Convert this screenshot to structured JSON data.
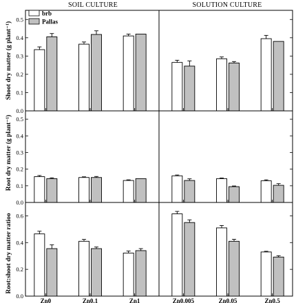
{
  "column_titles": [
    "SOIL CULTURE",
    "SOLUTION CULTURE"
  ],
  "row_labels": [
    "Shoot dry matter (g plant⁻¹)",
    "Root dry matter (g plant⁻¹)",
    "Root:shoot dry matter ratioo"
  ],
  "legend": [
    "brb",
    "Pallas"
  ],
  "colors": {
    "brb": "#ffffff",
    "Pallas": "#c0c0c0",
    "axis": "#000000"
  },
  "chart_data": [
    {
      "type": "bar",
      "title": "SOIL CULTURE",
      "ylabel": "Shoot dry matter (g plant⁻¹)",
      "categories": [
        "Zn0",
        "Zn0.1",
        "Zn1"
      ],
      "ylim": [
        0,
        0.55
      ],
      "yticks": [
        "0.0",
        "0.1",
        "0.2",
        "0.3",
        "0.4",
        "0.5"
      ],
      "series": [
        {
          "name": "brb",
          "values": [
            0.335,
            0.365,
            0.41
          ],
          "errors": [
            0.015,
            0.012,
            0.01
          ]
        },
        {
          "name": "Pallas",
          "values": [
            0.405,
            0.418,
            0.42
          ],
          "errors": [
            0.018,
            0.02,
            0.0
          ]
        }
      ]
    },
    {
      "type": "bar",
      "title": "SOLUTION CULTURE",
      "categories": [
        "Zn0.005",
        "Zn0.05",
        "Zn0.5"
      ],
      "ylim": [
        0,
        0.55
      ],
      "series": [
        {
          "name": "brb",
          "values": [
            0.265,
            0.285,
            0.395
          ],
          "errors": [
            0.012,
            0.01,
            0.018
          ]
        },
        {
          "name": "Pallas",
          "values": [
            0.245,
            0.262,
            0.38
          ],
          "errors": [
            0.028,
            0.008,
            0.0
          ]
        }
      ]
    },
    {
      "type": "bar",
      "ylabel": "Root dry matter (g plant⁻¹)",
      "categories": [
        "Zn0",
        "Zn0.1",
        "Zn1"
      ],
      "ylim": [
        0,
        0.55
      ],
      "yticks": [
        "0.0",
        "0.1",
        "0.2",
        "0.3",
        "0.4",
        "0.5"
      ],
      "series": [
        {
          "name": "brb",
          "values": [
            0.155,
            0.15,
            0.132
          ],
          "errors": [
            0.007,
            0.004,
            0.004
          ]
        },
        {
          "name": "Pallas",
          "values": [
            0.143,
            0.15,
            0.143
          ],
          "errors": [
            0.005,
            0.006,
            0.0
          ]
        }
      ]
    },
    {
      "type": "bar",
      "categories": [
        "Zn0.005",
        "Zn0.05",
        "Zn0.5"
      ],
      "ylim": [
        0,
        0.55
      ],
      "series": [
        {
          "name": "brb",
          "values": [
            0.16,
            0.143,
            0.13
          ],
          "errors": [
            0.005,
            0.004,
            0.006
          ]
        },
        {
          "name": "Pallas",
          "values": [
            0.132,
            0.095,
            0.103
          ],
          "errors": [
            0.01,
            0.004,
            0.01
          ]
        }
      ]
    },
    {
      "type": "bar",
      "ylabel": "Root:shoot dry matter ratioo",
      "categories": [
        "Zn0",
        "Zn0.1",
        "Zn1"
      ],
      "ylim": [
        0,
        0.7
      ],
      "yticks": [
        "0.0",
        "0.2",
        "0.4",
        "0.6"
      ],
      "series": [
        {
          "name": "brb",
          "values": [
            0.465,
            0.41,
            0.322
          ],
          "errors": [
            0.02,
            0.014,
            0.015
          ]
        },
        {
          "name": "Pallas",
          "values": [
            0.355,
            0.355,
            0.34
          ],
          "errors": [
            0.028,
            0.012,
            0.015
          ]
        }
      ]
    },
    {
      "type": "bar",
      "categories": [
        "Zn0.005",
        "Zn0.05",
        "Zn0.5"
      ],
      "ylim": [
        0,
        0.7
      ],
      "series": [
        {
          "name": "brb",
          "values": [
            0.615,
            0.51,
            0.33
          ],
          "errors": [
            0.018,
            0.018,
            0.005
          ]
        },
        {
          "name": "Pallas",
          "values": [
            0.55,
            0.41,
            0.292
          ],
          "errors": [
            0.02,
            0.015,
            0.01
          ]
        }
      ]
    }
  ]
}
